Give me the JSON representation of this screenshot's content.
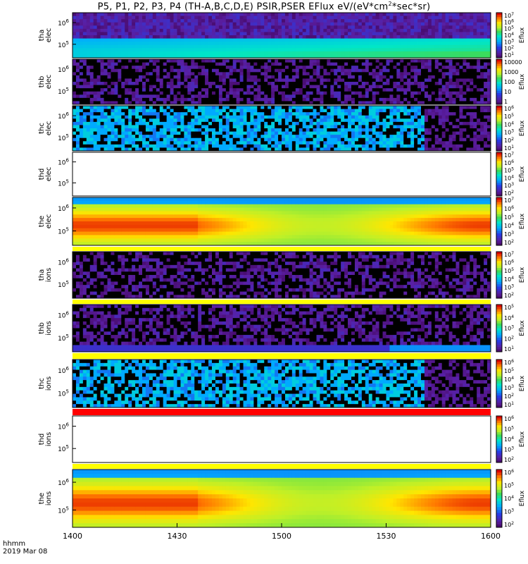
{
  "title": "P5, P1, P2, P3, P4 (TH-A,B,C,D,E) PSIR,PSER EFlux eV/(eV*cm2*sec*sr)",
  "x_axis": {
    "ticks": [
      "1400",
      "1430",
      "1500",
      "1530",
      "1600"
    ],
    "corner_label_1": "hhmm",
    "corner_label_2": "2019 Mar 08"
  },
  "colorbar_label": "Eflux",
  "chart_data": [
    {
      "type": "heatmap",
      "panel": "tha-elec",
      "ylabel": [
        "tha",
        "elec"
      ],
      "y_ticks": [
        "10^6",
        "10^5"
      ],
      "colorbar_ticks": [
        "10^7",
        "10^6",
        "10^5",
        "10^4",
        "10^3",
        "10^2",
        "10^1"
      ],
      "pattern": "noise-band-bottom"
    },
    {
      "type": "heatmap",
      "panel": "thb-elec",
      "ylabel": [
        "thb",
        "elec"
      ],
      "y_ticks": [
        "10^6",
        "10^5"
      ],
      "colorbar_ticks": [
        "10000",
        "1000",
        "100",
        "10",
        "1"
      ],
      "pattern": "noise-dark"
    },
    {
      "type": "heatmap",
      "panel": "thc-elec",
      "ylabel": [
        "thc",
        "elec"
      ],
      "y_ticks": [
        "10^6",
        "10^5"
      ],
      "colorbar_ticks": [
        "10^6",
        "10^5",
        "10^4",
        "10^3",
        "10^2",
        "10^1"
      ],
      "pattern": "stripes-until-1545"
    },
    {
      "type": "heatmap",
      "panel": "thd-elec",
      "ylabel": [
        "thd",
        "elec"
      ],
      "y_ticks": [
        "10^6",
        "10^5"
      ],
      "colorbar_ticks": [
        "10^7",
        "10^6",
        "10^5",
        "10^4",
        "10^3",
        "10^2"
      ],
      "pattern": "empty"
    },
    {
      "type": "heatmap",
      "panel": "the-elec",
      "ylabel": [
        "the",
        "elec"
      ],
      "y_ticks": [
        "10^6",
        "10^5"
      ],
      "colorbar_ticks": [
        "10^7",
        "10^6",
        "10^5",
        "10^4",
        "10^3",
        "10^2"
      ],
      "pattern": "smooth-red"
    },
    {
      "type": "heatmap",
      "panel": "tha-ions",
      "ylabel": [
        "tha",
        "ions"
      ],
      "y_ticks": [
        "10^6",
        "10^5"
      ],
      "colorbar_ticks": [
        "10^7",
        "10^6",
        "10^5",
        "10^4",
        "10^3",
        "10^2"
      ],
      "pattern": "noise-dark"
    },
    {
      "type": "heatmap",
      "panel": "thb-ions",
      "ylabel": [
        "thb",
        "ions"
      ],
      "y_ticks": [
        "10^6",
        "10^5"
      ],
      "colorbar_ticks": [
        "10^5",
        "10^4",
        "10^3",
        "10^2",
        "10^1"
      ],
      "pattern": "noise-dark-blue-bottom"
    },
    {
      "type": "heatmap",
      "panel": "thc-ions",
      "ylabel": [
        "thc",
        "ions"
      ],
      "y_ticks": [
        "10^6",
        "10^5"
      ],
      "colorbar_ticks": [
        "10^6",
        "10^5",
        "10^4",
        "10^3",
        "10^2",
        "10^1"
      ],
      "pattern": "stripes-until-1545"
    },
    {
      "type": "heatmap",
      "panel": "thd-ions",
      "ylabel": [
        "thd",
        "ions"
      ],
      "y_ticks": [
        "10^6",
        "10^5"
      ],
      "colorbar_ticks": [
        "10^6",
        "10^5",
        "10^4",
        "10^3",
        "10^2"
      ],
      "pattern": "empty"
    },
    {
      "type": "heatmap",
      "panel": "the-ions",
      "ylabel": [
        "the",
        "ions"
      ],
      "y_ticks": [
        "10^6",
        "10^5"
      ],
      "colorbar_ticks": [
        "10^6",
        "10^5",
        "10^4",
        "10^3",
        "10^2"
      ],
      "pattern": "smooth-red"
    }
  ]
}
